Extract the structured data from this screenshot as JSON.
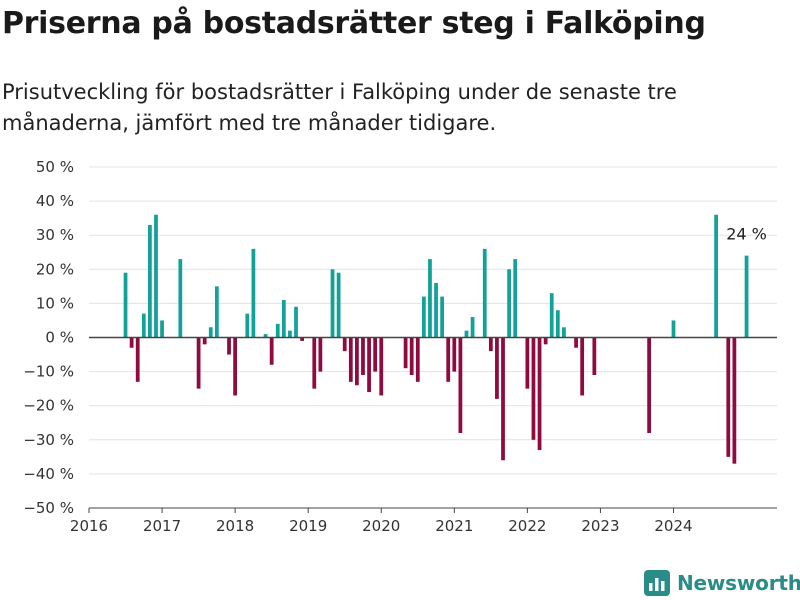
{
  "title": "Priserna på bostadsrätter steg i Falköping",
  "subtitle": "Prisutveckling för bostadsrätter i Falköping under de senaste tre månaderna, jämfört med tre månader tidigare.",
  "brand": "Newsworthy",
  "colors": {
    "positive": "#13a29a",
    "negative": "#8e0a3f",
    "grid": "#e3e3e3",
    "zero_line": "#444444",
    "brand": "#2a8c87"
  },
  "chart_data": {
    "type": "bar",
    "title": "Priserna på bostadsrätter steg i Falköping",
    "xlabel": "",
    "ylabel": "",
    "x_axis": {
      "min": "2016-01",
      "max": "2025-06",
      "tick_labels": [
        "2016",
        "2017",
        "2018",
        "2019",
        "2020",
        "2021",
        "2022",
        "2023",
        "2024"
      ]
    },
    "y_axis": {
      "min": -50,
      "max": 50,
      "step": 10,
      "tick_labels": [
        "50 %",
        "40 %",
        "30 %",
        "20 %",
        "10 %",
        "0 %",
        "−10 %",
        "−20 %",
        "−30 %",
        "−40 %",
        "−50 %"
      ]
    },
    "grid": "horizontal",
    "series": [
      {
        "unit": "%",
        "points": [
          {
            "x": "2016-07",
            "y": 19
          },
          {
            "x": "2016-08",
            "y": -3
          },
          {
            "x": "2016-09",
            "y": -13
          },
          {
            "x": "2016-10",
            "y": 7
          },
          {
            "x": "2016-11",
            "y": 33
          },
          {
            "x": "2016-12",
            "y": 36
          },
          {
            "x": "2017-01",
            "y": 5
          },
          {
            "x": "2017-04",
            "y": 23
          },
          {
            "x": "2017-07",
            "y": -15
          },
          {
            "x": "2017-08",
            "y": -2
          },
          {
            "x": "2017-09",
            "y": 3
          },
          {
            "x": "2017-10",
            "y": 15
          },
          {
            "x": "2017-12",
            "y": -5
          },
          {
            "x": "2018-01",
            "y": -17
          },
          {
            "x": "2018-03",
            "y": 7
          },
          {
            "x": "2018-04",
            "y": 26
          },
          {
            "x": "2018-06",
            "y": 1
          },
          {
            "x": "2018-07",
            "y": -8
          },
          {
            "x": "2018-08",
            "y": 4
          },
          {
            "x": "2018-09",
            "y": 11
          },
          {
            "x": "2018-10",
            "y": 2
          },
          {
            "x": "2018-11",
            "y": 9
          },
          {
            "x": "2018-12",
            "y": -1
          },
          {
            "x": "2019-02",
            "y": -15
          },
          {
            "x": "2019-03",
            "y": -10
          },
          {
            "x": "2019-05",
            "y": 20
          },
          {
            "x": "2019-06",
            "y": 19
          },
          {
            "x": "2019-07",
            "y": -4
          },
          {
            "x": "2019-08",
            "y": -13
          },
          {
            "x": "2019-09",
            "y": -14
          },
          {
            "x": "2019-10",
            "y": -11
          },
          {
            "x": "2019-11",
            "y": -16
          },
          {
            "x": "2019-12",
            "y": -10
          },
          {
            "x": "2020-01",
            "y": -17
          },
          {
            "x": "2020-05",
            "y": -9
          },
          {
            "x": "2020-06",
            "y": -11
          },
          {
            "x": "2020-07",
            "y": -13
          },
          {
            "x": "2020-08",
            "y": 12
          },
          {
            "x": "2020-09",
            "y": 23
          },
          {
            "x": "2020-10",
            "y": 16
          },
          {
            "x": "2020-11",
            "y": 12
          },
          {
            "x": "2020-12",
            "y": -13
          },
          {
            "x": "2021-01",
            "y": -10
          },
          {
            "x": "2021-02",
            "y": -28
          },
          {
            "x": "2021-03",
            "y": 2
          },
          {
            "x": "2021-04",
            "y": 6
          },
          {
            "x": "2021-06",
            "y": 26
          },
          {
            "x": "2021-07",
            "y": -4
          },
          {
            "x": "2021-08",
            "y": -18
          },
          {
            "x": "2021-09",
            "y": -36
          },
          {
            "x": "2021-10",
            "y": 20
          },
          {
            "x": "2021-11",
            "y": 23
          },
          {
            "x": "2022-01",
            "y": -15
          },
          {
            "x": "2022-02",
            "y": -30
          },
          {
            "x": "2022-03",
            "y": -33
          },
          {
            "x": "2022-04",
            "y": -2
          },
          {
            "x": "2022-05",
            "y": 13
          },
          {
            "x": "2022-06",
            "y": 8
          },
          {
            "x": "2022-07",
            "y": 3
          },
          {
            "x": "2022-09",
            "y": -3
          },
          {
            "x": "2022-10",
            "y": -17
          },
          {
            "x": "2022-12",
            "y": -11
          },
          {
            "x": "2023-09",
            "y": -28
          },
          {
            "x": "2024-01",
            "y": 5
          },
          {
            "x": "2024-08",
            "y": 36
          },
          {
            "x": "2024-10",
            "y": -35
          },
          {
            "x": "2024-11",
            "y": -37
          },
          {
            "x": "2025-01",
            "y": 24
          }
        ]
      }
    ],
    "annotations": [
      {
        "x": "2025-01",
        "text": "24 %"
      }
    ]
  }
}
